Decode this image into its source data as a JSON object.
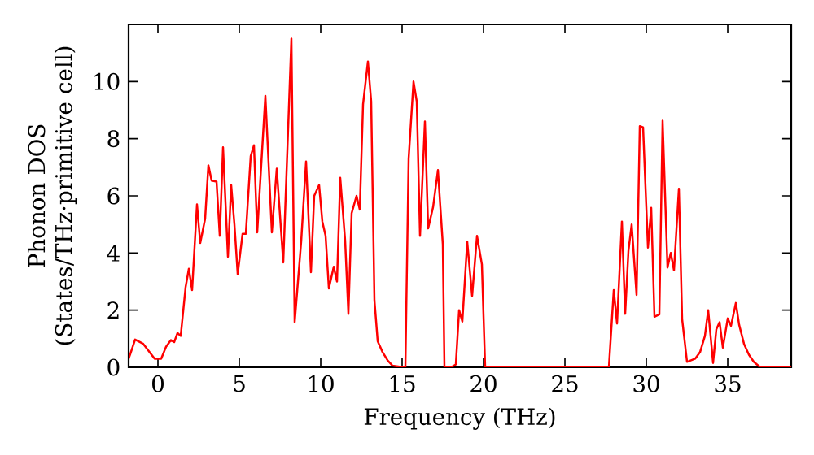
{
  "chart_data": {
    "type": "line",
    "xlabel": "Frequency (THz)",
    "ylabel": "Phonon DOS (States/THz·primitive cell)",
    "xlim": [
      -1.8,
      38.9
    ],
    "ylim": [
      0,
      12
    ],
    "xticks": [
      0,
      5,
      10,
      15,
      20,
      25,
      30,
      35
    ],
    "yticks": [
      0,
      2,
      4,
      6,
      8,
      10
    ],
    "grid": false,
    "marker": "none",
    "line_style": "solid",
    "series": [
      {
        "color": "#ff0000",
        "x": [
          -1.8,
          -1.7,
          -1.4,
          -0.9,
          -0.2,
          0.2,
          0.5,
          0.8,
          1.0,
          1.2,
          1.4,
          1.7,
          1.9,
          2.1,
          2.4,
          2.6,
          2.9,
          3.1,
          3.3,
          3.6,
          3.8,
          4.0,
          4.3,
          4.5,
          4.7,
          4.9,
          5.2,
          5.4,
          5.7,
          5.9,
          6.1,
          6.6,
          7.0,
          7.3,
          7.7,
          8.2,
          8.4,
          8.8,
          9.1,
          9.4,
          9.6,
          9.9,
          10.1,
          10.3,
          10.5,
          10.8,
          11.0,
          11.2,
          11.5,
          11.7,
          11.9,
          12.2,
          12.4,
          12.6,
          12.9,
          13.1,
          13.3,
          13.5,
          13.8,
          14.1,
          14.4,
          15.1,
          15.2,
          15.4,
          15.7,
          15.9,
          16.1,
          16.4,
          16.6,
          16.9,
          17.2,
          17.5,
          17.6,
          18.0,
          18.3,
          18.5,
          18.7,
          19.0,
          19.3,
          19.6,
          19.9,
          20.1,
          27.7,
          28.0,
          28.2,
          28.5,
          28.7,
          28.9,
          29.1,
          29.4,
          29.6,
          29.8,
          30.1,
          30.3,
          30.5,
          30.8,
          31.0,
          31.3,
          31.5,
          31.7,
          32.0,
          32.2,
          32.5,
          33.0,
          33.3,
          33.6,
          33.8,
          34.1,
          34.3,
          34.5,
          34.7,
          35.0,
          35.2,
          35.5,
          35.7,
          36.0,
          36.3,
          36.6,
          37.0,
          38.9
        ],
        "values": [
          0.3,
          0.46,
          0.97,
          0.82,
          0.3,
          0.3,
          0.72,
          0.95,
          0.88,
          1.2,
          1.1,
          2.8,
          3.45,
          2.7,
          5.7,
          4.35,
          5.2,
          7.07,
          6.53,
          6.5,
          4.6,
          7.7,
          3.87,
          6.38,
          5.0,
          3.26,
          4.67,
          4.67,
          7.39,
          7.77,
          4.72,
          9.5,
          4.72,
          6.95,
          3.67,
          11.5,
          1.58,
          4.4,
          7.2,
          3.33,
          6.0,
          6.38,
          5.1,
          4.6,
          2.76,
          3.52,
          3.0,
          6.63,
          4.43,
          1.87,
          5.39,
          6.0,
          5.52,
          9.2,
          10.7,
          9.3,
          2.34,
          0.91,
          0.53,
          0.25,
          0.06,
          0,
          0,
          7.3,
          10.0,
          9.3,
          4.6,
          8.6,
          4.86,
          5.6,
          6.9,
          4.3,
          0,
          0,
          0.1,
          2.0,
          1.6,
          4.4,
          2.5,
          4.6,
          3.6,
          0,
          0,
          2.7,
          1.53,
          5.1,
          1.87,
          4.06,
          5.0,
          2.53,
          8.44,
          8.4,
          4.19,
          5.58,
          1.77,
          1.85,
          8.63,
          3.49,
          4.0,
          3.39,
          6.25,
          1.68,
          0.19,
          0.3,
          0.53,
          1.1,
          2.0,
          0.15,
          1.33,
          1.58,
          0.69,
          1.71,
          1.45,
          2.25,
          1.49,
          0.82,
          0.44,
          0.19,
          0,
          0
        ]
      }
    ]
  }
}
